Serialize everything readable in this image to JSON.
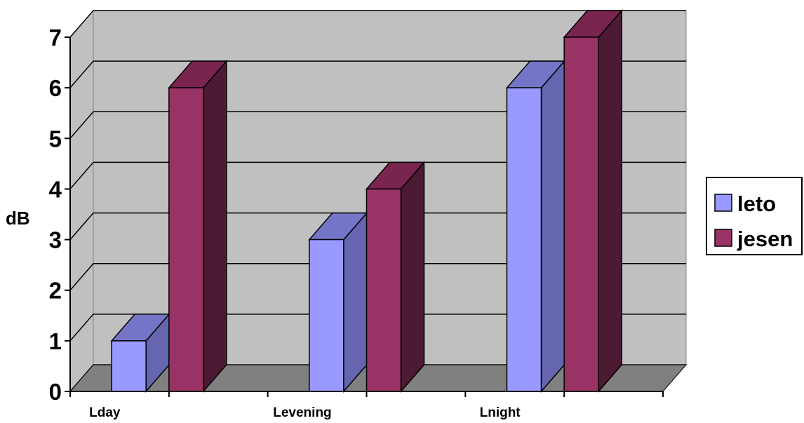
{
  "chart_data": {
    "type": "bar",
    "title": "",
    "xlabel": "",
    "ylabel": "dB",
    "categories": [
      "Lday",
      "Levening",
      "Lnight"
    ],
    "series": [
      {
        "name": "leto",
        "values": [
          1,
          3,
          6
        ]
      },
      {
        "name": "jesen",
        "values": [
          6,
          4,
          7
        ]
      }
    ],
    "ylim": [
      0,
      7
    ],
    "yticks": [
      "0",
      "1",
      "2",
      "3",
      "4",
      "5",
      "6",
      "7"
    ],
    "grid": true,
    "legend": "right",
    "style": "3d-clustered-column",
    "colors": {
      "leto": {
        "front": "#9999ff",
        "top": "#7575c8",
        "side": "#6666b0"
      },
      "jesen": {
        "front": "#993366",
        "top": "#7a2450",
        "side": "#4d1a33"
      },
      "wall": "#c0c0c0",
      "floor": "#808080"
    }
  }
}
